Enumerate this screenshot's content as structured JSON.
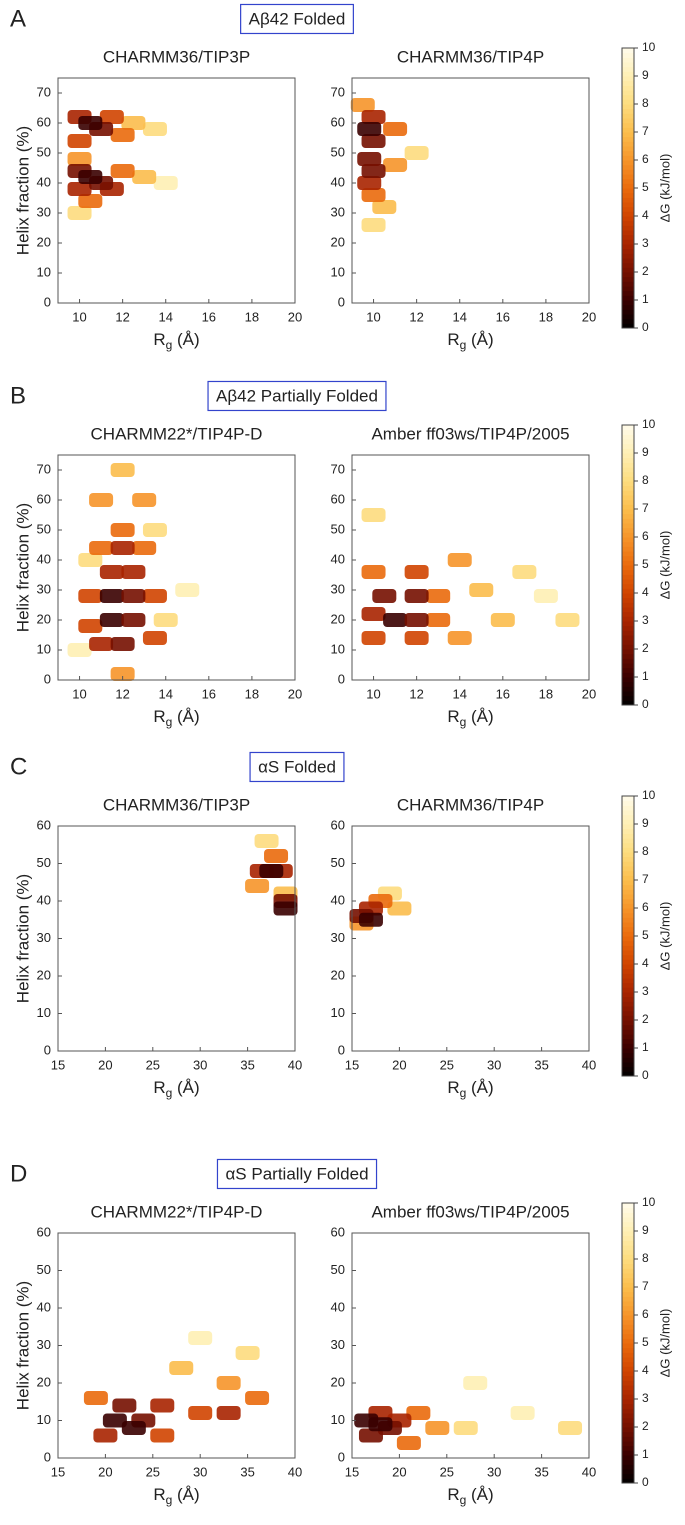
{
  "panels": [
    {
      "letter": "A",
      "title": "Aβ42 Folded",
      "colorbar": {
        "label": "ΔG (kJ/mol)",
        "lim": [
          0,
          10
        ],
        "ticks": [
          0,
          1,
          2,
          3,
          4,
          5,
          6,
          7,
          8,
          9,
          10
        ]
      }
    },
    {
      "letter": "B",
      "title": "Aβ42 Partially Folded",
      "colorbar": {
        "label": "ΔG (kJ/mol)",
        "lim": [
          0,
          10
        ],
        "ticks": [
          0,
          1,
          2,
          3,
          4,
          5,
          6,
          7,
          8,
          9,
          10
        ]
      }
    },
    {
      "letter": "C",
      "title": "αS Folded",
      "colorbar": {
        "label": "ΔG (kJ/mol)",
        "lim": [
          0,
          10
        ],
        "ticks": [
          0,
          1,
          2,
          3,
          4,
          5,
          6,
          7,
          8,
          9,
          10
        ]
      }
    },
    {
      "letter": "D",
      "title": "αS Partially Folded",
      "colorbar": {
        "label": "ΔG (kJ/mol)",
        "lim": [
          0,
          10
        ],
        "ticks": [
          0,
          1,
          2,
          3,
          4,
          5,
          6,
          7,
          8,
          9,
          10
        ]
      }
    }
  ],
  "chart_data": [
    {
      "type": "heatmap",
      "title": "CHARMM36/TIP3P",
      "ylabel": "Helix fraction (%)",
      "xlabel": [
        "R",
        "g",
        " (Å)"
      ],
      "xlim": [
        9,
        20
      ],
      "xticks": [
        10,
        12,
        14,
        16,
        18,
        20
      ],
      "ylim": [
        0,
        75
      ],
      "yticks": [
        0,
        10,
        20,
        30,
        40,
        50,
        60,
        70
      ],
      "x": [
        14,
        13.5,
        10,
        12.5,
        13,
        10,
        12,
        12,
        10.5,
        11.5,
        10,
        11.5,
        10,
        10,
        11,
        11,
        10,
        10.5,
        10.5
      ],
      "y": [
        40,
        58,
        30,
        60,
        42,
        48,
        56,
        44,
        34,
        62,
        54,
        38,
        38,
        62,
        58,
        40,
        44,
        60,
        42
      ],
      "values": [
        9,
        8,
        8,
        7,
        7,
        6,
        5,
        5,
        5,
        4,
        4,
        3,
        3,
        3,
        2,
        2,
        2,
        1,
        1
      ]
    },
    {
      "type": "heatmap",
      "title": "CHARMM36/TIP4P",
      "xlabel": [
        "R",
        "g",
        " (Å)"
      ],
      "xlim": [
        9,
        20
      ],
      "xticks": [
        10,
        12,
        14,
        16,
        18,
        20
      ],
      "ylim": [
        0,
        75
      ],
      "yticks": [
        0,
        10,
        20,
        30,
        40,
        50,
        60,
        70
      ],
      "x": [
        12,
        10,
        10.5,
        11,
        9.5,
        11,
        10,
        10,
        9.8,
        10,
        9.8,
        10,
        9.8
      ],
      "y": [
        50,
        26,
        32,
        46,
        66,
        58,
        36,
        62,
        40,
        54,
        48,
        44,
        58
      ],
      "values": [
        8,
        8,
        7,
        6,
        6,
        5,
        5,
        3,
        3,
        2,
        2,
        2,
        1
      ]
    },
    {
      "type": "heatmap",
      "title": "CHARMM22*/TIP4P-D",
      "ylabel": "Helix fraction (%)",
      "xlabel": [
        "R",
        "g",
        " (Å)"
      ],
      "xlim": [
        9,
        20
      ],
      "xticks": [
        10,
        12,
        14,
        16,
        18,
        20
      ],
      "ylim": [
        0,
        75
      ],
      "yticks": [
        0,
        10,
        20,
        30,
        40,
        50,
        60,
        70
      ],
      "x": [
        10,
        14,
        15,
        10.5,
        13.5,
        12,
        11,
        13,
        12,
        11,
        13,
        12,
        10.5,
        13.5,
        10.5,
        13.5,
        11.5,
        12.5,
        11,
        12,
        11.5,
        12.5,
        11.5,
        12.5,
        12
      ],
      "y": [
        10,
        20,
        30,
        40,
        50,
        70,
        60,
        60,
        50,
        44,
        44,
        2,
        28,
        28,
        18,
        14,
        36,
        36,
        12,
        44,
        28,
        28,
        20,
        20,
        12
      ],
      "values": [
        9,
        8,
        9,
        8,
        8,
        7,
        6,
        6,
        5,
        5,
        5,
        6,
        4,
        4,
        4,
        4,
        3,
        3,
        3,
        3,
        1,
        2,
        1,
        2,
        2
      ]
    },
    {
      "type": "heatmap",
      "title": "Amber ff03ws/TIP4P/2005",
      "xlabel": [
        "R",
        "g",
        " (Å)"
      ],
      "xlim": [
        9,
        20
      ],
      "xticks": [
        10,
        12,
        14,
        16,
        18,
        20
      ],
      "ylim": [
        0,
        75
      ],
      "yticks": [
        0,
        10,
        20,
        30,
        40,
        50,
        60,
        70
      ],
      "x": [
        19,
        17,
        18,
        10,
        16,
        15,
        14,
        14,
        13,
        13,
        10,
        10,
        12,
        12,
        10,
        10.5,
        12,
        11,
        12
      ],
      "y": [
        20,
        36,
        28,
        55,
        20,
        30,
        40,
        14,
        20,
        28,
        36,
        14,
        36,
        14,
        22,
        28,
        28,
        20,
        20
      ],
      "values": [
        8,
        8,
        9,
        8,
        7,
        7,
        6,
        6,
        5,
        5,
        5,
        4,
        4,
        4,
        3,
        2,
        2,
        1,
        2
      ]
    },
    {
      "type": "heatmap",
      "title": "CHARMM36/TIP3P",
      "ylabel": "Helix fraction (%)",
      "xlabel": [
        "R",
        "g",
        " (Å)"
      ],
      "xlim": [
        15,
        40
      ],
      "xticks": [
        15,
        20,
        25,
        30,
        35,
        40
      ],
      "ylim": [
        0,
        60
      ],
      "yticks": [
        0,
        10,
        20,
        30,
        40,
        50,
        60
      ],
      "x": [
        37,
        39,
        36,
        38,
        36.5,
        38.5,
        39,
        37.5,
        39
      ],
      "y": [
        56,
        42,
        44,
        52,
        48,
        48,
        40,
        48,
        38
      ],
      "values": [
        8,
        7,
        6,
        5,
        3,
        3,
        2,
        1,
        1
      ]
    },
    {
      "type": "heatmap",
      "title": "CHARMM36/TIP4P",
      "xlabel": [
        "R",
        "g",
        " (Å)"
      ],
      "xlim": [
        15,
        40
      ],
      "xticks": [
        15,
        20,
        25,
        30,
        35,
        40
      ],
      "ylim": [
        0,
        60
      ],
      "yticks": [
        0,
        10,
        20,
        30,
        40,
        50,
        60
      ],
      "x": [
        19,
        20,
        18,
        16,
        17,
        16,
        17
      ],
      "y": [
        42,
        38,
        40,
        34,
        38,
        36,
        35
      ],
      "values": [
        8,
        7,
        5,
        6,
        3,
        2,
        1
      ]
    },
    {
      "type": "heatmap",
      "title": "CHARMM22*/TIP4P-D",
      "ylabel": "Helix fraction (%)",
      "xlabel": [
        "R",
        "g",
        " (Å)"
      ],
      "xlim": [
        15,
        40
      ],
      "xticks": [
        15,
        20,
        25,
        30,
        35,
        40
      ],
      "ylim": [
        0,
        60
      ],
      "yticks": [
        0,
        10,
        20,
        30,
        40,
        50,
        60
      ],
      "x": [
        30,
        35,
        28,
        33,
        36,
        19,
        30,
        26,
        33,
        20,
        26,
        24,
        22,
        21,
        23
      ],
      "y": [
        32,
        28,
        24,
        20,
        16,
        16,
        12,
        14,
        12,
        6,
        6,
        10,
        14,
        10,
        8
      ],
      "values": [
        9,
        8,
        7,
        6,
        5,
        5,
        4,
        3,
        3,
        3,
        4,
        2,
        2,
        1,
        1
      ]
    },
    {
      "type": "heatmap",
      "title": "Amber ff03ws/TIP4P/2005",
      "xlabel": [
        "R",
        "g",
        " (Å)"
      ],
      "xlim": [
        15,
        40
      ],
      "xticks": [
        15,
        20,
        25,
        30,
        35,
        40
      ],
      "ylim": [
        0,
        60
      ],
      "yticks": [
        0,
        10,
        20,
        30,
        40,
        50,
        60
      ],
      "x": [
        28,
        38,
        33,
        27,
        24,
        22,
        21,
        20,
        18,
        17,
        19,
        16.5,
        18
      ],
      "y": [
        20,
        8,
        12,
        8,
        8,
        12,
        4,
        10,
        12,
        6,
        8,
        10,
        9
      ],
      "values": [
        9,
        8,
        9,
        8,
        6,
        5,
        5,
        3,
        3,
        2,
        2,
        1,
        1
      ]
    }
  ]
}
